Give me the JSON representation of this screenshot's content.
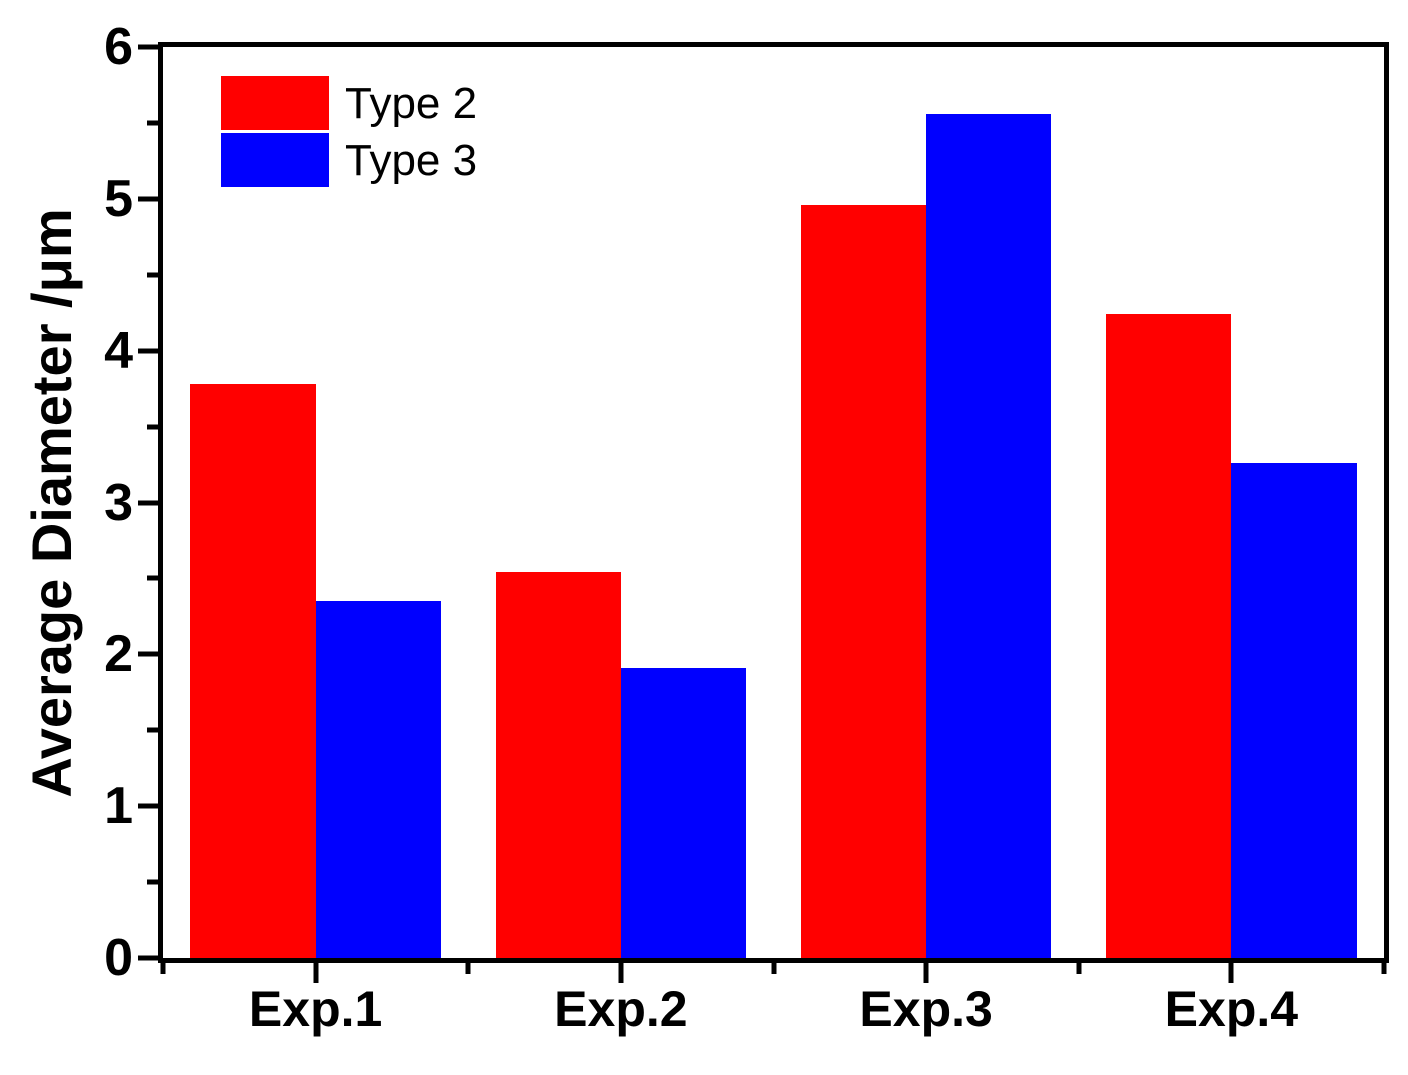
{
  "chart_data": {
    "type": "bar",
    "title": "",
    "xlabel": "",
    "ylabel": "Average Diameter /μm",
    "categories": [
      "Exp.1",
      "Exp.2",
      "Exp.3",
      "Exp.4"
    ],
    "series": [
      {
        "name": "Type 2",
        "color": "#ff0000",
        "values": [
          3.78,
          2.54,
          4.96,
          4.24
        ]
      },
      {
        "name": "Type 3",
        "color": "#0000ff",
        "values": [
          2.35,
          1.91,
          5.56,
          3.26
        ]
      }
    ],
    "ylim": [
      0,
      6
    ],
    "y_major_ticks": [
      0,
      1,
      2,
      3,
      4,
      5,
      6
    ],
    "y_minor_ticks": [
      0.5,
      1.5,
      2.5,
      3.5,
      4.5,
      5.5
    ],
    "xlim": [
      0,
      8
    ],
    "x_major_ticks": [
      1,
      3,
      5,
      7
    ],
    "x_minor_ticks": [
      0,
      2,
      4,
      6,
      8
    ],
    "bar_width_units": 0.82,
    "group_centers": [
      1,
      3,
      5,
      7
    ],
    "grid": false,
    "legend_position": "top-left",
    "frame_color": "#000000",
    "background_color": "#ffffff"
  }
}
